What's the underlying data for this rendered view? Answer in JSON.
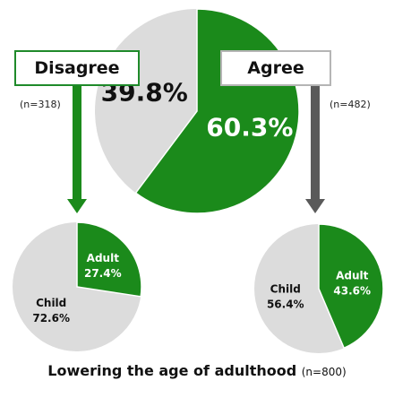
{
  "chart_data": [
    {
      "type": "pie",
      "categories": [
        "Disagree",
        "Agree"
      ],
      "values": [
        39.8,
        60.3
      ],
      "labels": [
        "39.8%",
        "60.3%"
      ],
      "colors": [
        "#dcdcdc",
        "#1b8a1b"
      ]
    },
    {
      "type": "pie",
      "group": "Disagree",
      "n": "(n=318)",
      "categories": [
        "Child",
        "Adult"
      ],
      "values": [
        72.6,
        27.4
      ],
      "labels": [
        "72.6%",
        "27.4%"
      ],
      "colors": [
        "#dcdcdc",
        "#1b8a1b"
      ]
    },
    {
      "type": "pie",
      "group": "Agree",
      "n": "(n=482)",
      "categories": [
        "Child",
        "Adult"
      ],
      "values": [
        56.4,
        43.6
      ],
      "labels": [
        "56.4%",
        "43.6%"
      ],
      "colors": [
        "#dcdcdc",
        "#1b8a1b"
      ]
    }
  ],
  "labels": {
    "disagree": "Disagree",
    "agree": "Agree",
    "n_disagree": "(n=318)",
    "n_agree": "(n=482)"
  },
  "footer": {
    "title": "Lowering the age of adulthood",
    "n": "(n=800)"
  },
  "colors": {
    "green": "#1b8a1b",
    "grey": "#dcdcdc",
    "arrow_dark": "#5a5a5a"
  }
}
